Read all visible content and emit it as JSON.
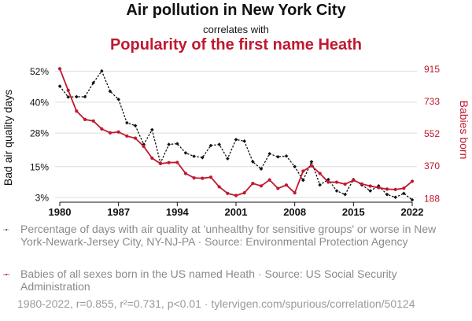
{
  "header": {
    "title": "Air pollution in New York City",
    "subtitle": "correlates with",
    "title2": "Popularity of the first name Heath"
  },
  "legend": {
    "series1": "Percentage of days with air quality at 'unhealthy for sensitive groups' or worse in New York-Newark-Jersey City, NY-NJ-PA · Source: Environmental Protection Agency",
    "series2": "Babies of all sexes born in the US named Heath · Source: US Social Security Administration"
  },
  "footer": "1980-2022, r=0.855, r²=0.731, p<0.01 · tylervigen.com/spurious/correlation/50124",
  "colors": {
    "series1": "#111111",
    "series2": "#c0182f",
    "grid": "#dddddd"
  },
  "chart_data": {
    "type": "line",
    "x": [
      1980,
      1981,
      1982,
      1983,
      1984,
      1985,
      1986,
      1987,
      1988,
      1989,
      1990,
      1991,
      1992,
      1993,
      1994,
      1995,
      1996,
      1997,
      1998,
      1999,
      2000,
      2001,
      2002,
      2003,
      2004,
      2005,
      2006,
      2007,
      2008,
      2009,
      2010,
      2011,
      2012,
      2013,
      2014,
      2015,
      2016,
      2017,
      2018,
      2019,
      2020,
      2021,
      2022
    ],
    "xlabel": "",
    "xticks": [
      1980,
      1987,
      1994,
      2001,
      2008,
      2015,
      2022
    ],
    "left_axis": {
      "label": "Bad air quality days",
      "ylim": [
        1.5,
        54
      ],
      "ticks": [
        3,
        15,
        28,
        40,
        52
      ],
      "tick_labels": [
        "3%",
        "15%",
        "28%",
        "40%",
        "52%"
      ]
    },
    "right_axis": {
      "label": "Babies born",
      "ylim": [
        170,
        930
      ],
      "ticks": [
        188,
        370,
        552,
        733,
        915
      ],
      "tick_labels": [
        "188",
        "370",
        "552",
        "733",
        "915"
      ]
    },
    "series": [
      {
        "name": "Percentage of days with air quality at 'unhealthy for sensitive groups' or worse in New York-Newark-Jersey City, NY-NJ-PA",
        "axis": "left",
        "marker": "diamond",
        "dashed": true,
        "values": [
          46.2,
          42.0,
          42.1,
          42.1,
          47.5,
          52.1,
          44.2,
          41.1,
          32.0,
          30.9,
          23.6,
          29.3,
          16.4,
          23.6,
          23.9,
          20.3,
          19.0,
          18.5,
          23.2,
          23.6,
          18.1,
          25.5,
          24.9,
          16.9,
          14.1,
          20.0,
          18.8,
          19.1,
          15.0,
          9.7,
          16.9,
          7.9,
          10.0,
          5.6,
          4.2,
          10.0,
          7.9,
          5.6,
          7.5,
          4.2,
          3.1,
          4.6,
          2.1
        ]
      },
      {
        "name": "Babies of all sexes born in the US named Heath",
        "axis": "right",
        "marker": "circle",
        "dashed": false,
        "values": [
          915,
          794,
          677,
          630,
          622,
          577,
          555,
          560,
          537,
          525,
          479,
          413,
          382,
          388,
          389,
          327,
          302,
          300,
          306,
          252,
          215,
          203,
          218,
          271,
          257,
          291,
          243,
          262,
          218,
          340,
          370,
          327,
          278,
          278,
          267,
          289,
          268,
          256,
          247,
          239,
          237,
          244,
          283
        ]
      }
    ]
  }
}
